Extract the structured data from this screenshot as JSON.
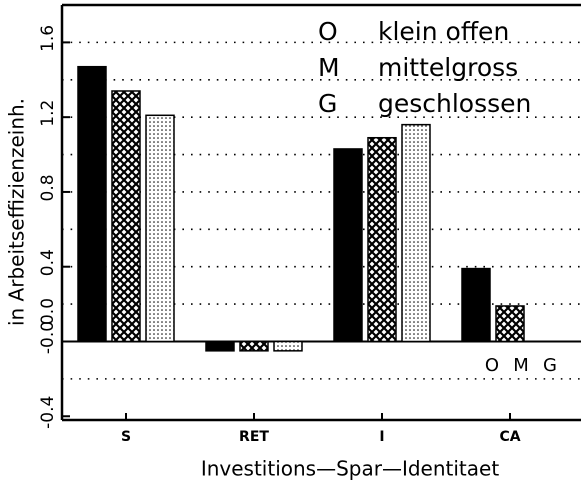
{
  "chart_data": {
    "type": "bar",
    "x_label": "Investitions—Spar—Identitaet",
    "y_label": "in Arbeitseffizienzeinh.",
    "categories": [
      "S",
      "RET",
      "I",
      "CA"
    ],
    "series": [
      {
        "name": "klein offen",
        "key": "O",
        "color": "#000000",
        "pattern": "solid",
        "values": [
          1.47,
          -0.05,
          1.03,
          0.39
        ]
      },
      {
        "name": "mittelgross",
        "key": "M",
        "color": "#000000",
        "pattern": "crosshatch",
        "values": [
          1.34,
          -0.05,
          1.09,
          0.19
        ]
      },
      {
        "name": "geschlossen",
        "key": "G",
        "color": "#000000",
        "pattern": "dots",
        "values": [
          1.21,
          -0.05,
          1.16,
          null
        ]
      }
    ],
    "ylim": [
      -0.42,
      1.8
    ],
    "yticks": [
      -0.4,
      {
        "value": 0,
        "label": "-0.0"
      },
      {
        "value": 0,
        "label": "0.0"
      },
      0.4,
      0.8,
      1.2,
      1.6
    ],
    "grid_yticks": [
      -0.2,
      0.2,
      0.4,
      0.6,
      0.8,
      1.0,
      1.2,
      1.4,
      1.6
    ],
    "grid": true
  }
}
